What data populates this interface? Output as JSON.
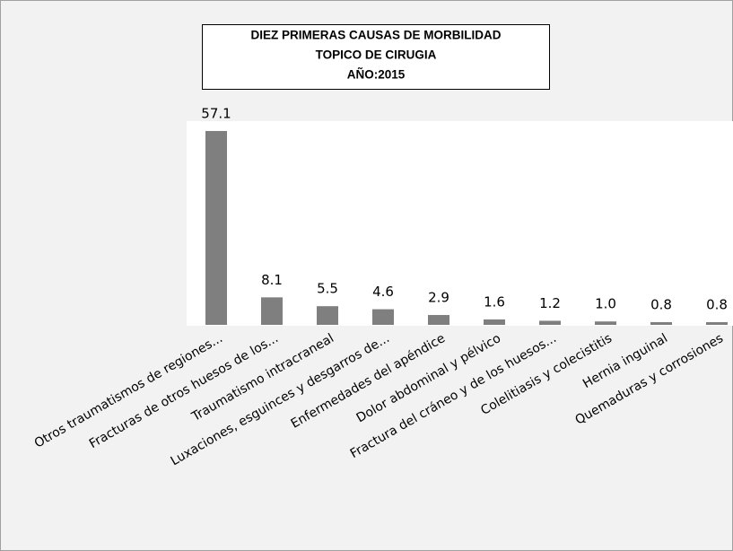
{
  "chart_data": {
    "type": "bar",
    "title": [
      "DIEZ PRIMERAS CAUSAS DE MORBILIDAD",
      "TOPICO DE CIRUGIA",
      "AÑO:2015"
    ],
    "categories": [
      "Otros traumatismos de regiones...",
      "Fracturas de otros huesos de los...",
      "Traumatismo intracraneal",
      "Luxaciones, esguinces y desgarros de...",
      "Enfermedades del apéndice",
      "Dolor abdominal y pélvico",
      "Fractura del cráneo y de los huesos...",
      "Colelitiasis y colecistitis",
      "Hernia inguinal",
      "Quemaduras y corrosiones"
    ],
    "values": [
      57.1,
      8.1,
      5.5,
      4.6,
      2.9,
      1.6,
      1.2,
      1.0,
      0.8,
      0.8
    ],
    "value_labels": [
      "57.1",
      "8.1",
      "5.5",
      "4.6",
      "2.9",
      "1.6",
      "1.2",
      "1.0",
      "0.8",
      "0.8"
    ],
    "color": "#7f7f7f",
    "ylim": [
      0,
      60
    ]
  }
}
